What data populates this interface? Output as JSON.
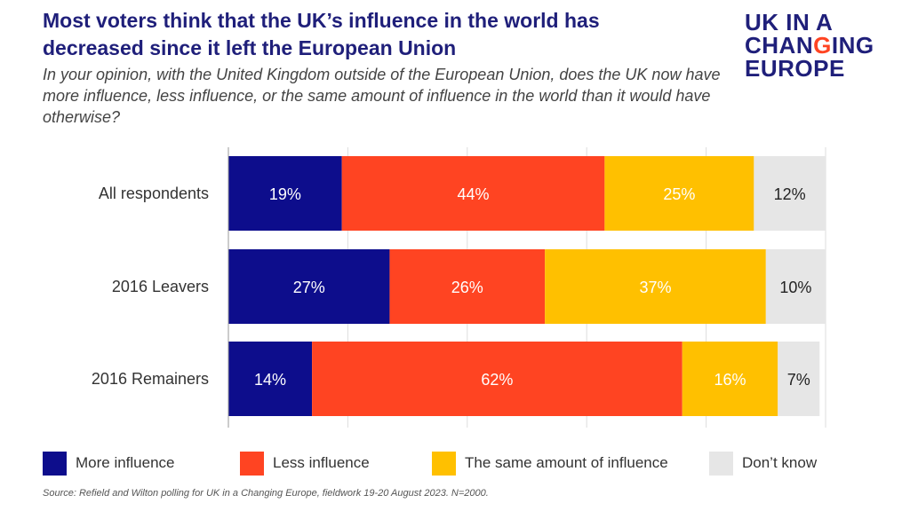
{
  "header": {
    "title": "Most voters think that the UK’s influence in the world has decreased since it left the European Union",
    "subtitle": "In your opinion, with the United Kingdom outside of the European Union, does the UK now have more influence, less influence, or the same amount of influence in the world than it would have otherwise?"
  },
  "logo": {
    "line1": "UK IN A",
    "line2_pre": "CHAN",
    "line2_accent": "G",
    "line2_post": "ING",
    "line3": "EUROPE"
  },
  "source": "Source: Refield and Wilton polling for UK in a Changing Europe, fieldwork 19-20 August 2023. N=2000.",
  "colors": {
    "more": "#0d0d8c",
    "less": "#ff4422",
    "same": "#ffc000",
    "dont_know": "#e6e6e6",
    "title": "#1f1f7a"
  },
  "chart_data": {
    "type": "bar",
    "orientation": "horizontal",
    "stacked": true,
    "categories": [
      "All respondents",
      "2016 Leavers",
      "2016 Remainers"
    ],
    "series": [
      {
        "name": "More influence",
        "values": [
          19,
          27,
          14
        ],
        "labels": [
          "19%",
          "27%",
          "14%"
        ]
      },
      {
        "name": "Less influence",
        "values": [
          44,
          26,
          62
        ],
        "labels": [
          "44%",
          "26%",
          "62%"
        ]
      },
      {
        "name": "The same amount of influence",
        "values": [
          25,
          37,
          16
        ],
        "labels": [
          "25%",
          "37%",
          "16%"
        ]
      },
      {
        "name": "Don’t know",
        "values": [
          12,
          10,
          7
        ],
        "labels": [
          "12%",
          "10%",
          "7%"
        ]
      }
    ],
    "xlim": [
      0,
      100
    ],
    "grid": true,
    "legend_position": "bottom"
  }
}
